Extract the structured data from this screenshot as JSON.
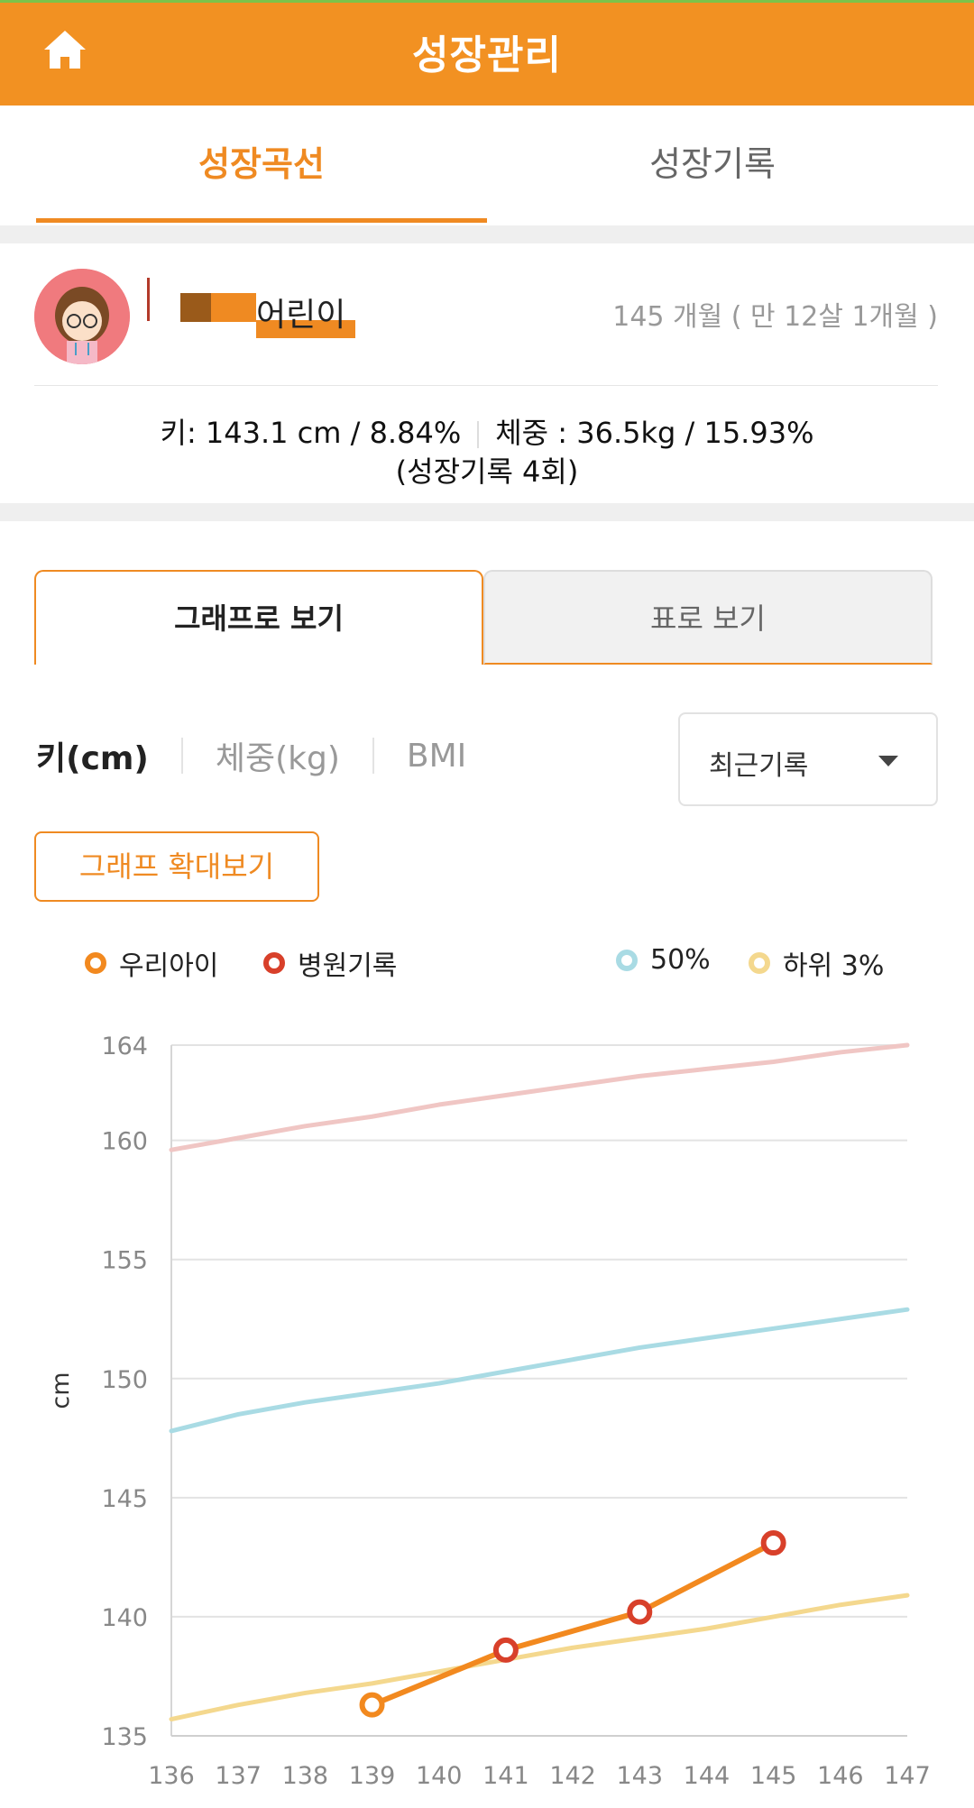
{
  "header": {
    "title": "성장관리",
    "home_icon": "home-icon"
  },
  "main_tabs": [
    {
      "label": "성장곡선",
      "active": true
    },
    {
      "label": "성장기록",
      "active": false
    }
  ],
  "profile": {
    "name": "어린이",
    "age": "145 개월 ( 만 12살 1개월 )",
    "stats_height": "키: 143.1 cm / 8.84%",
    "stats_weight": "체중 : 36.5kg / 15.93%",
    "stats_count": "(성장기록 4회)"
  },
  "view_tabs": [
    {
      "label": "그래프로 보기",
      "active": true
    },
    {
      "label": "표로 보기",
      "active": false
    }
  ],
  "metric_tabs": [
    {
      "label": "키(cm)",
      "active": true
    },
    {
      "label": "체중(kg)",
      "active": false
    },
    {
      "label": "BMI",
      "active": false
    }
  ],
  "dropdown": {
    "selected": "최근기록"
  },
  "zoom_button": "그래프 확대보기",
  "legend": [
    {
      "label": "우리아이",
      "color": "#f2891f"
    },
    {
      "label": "병원기록",
      "color": "#d8402a"
    },
    {
      "label": "50%",
      "color": "#a9dbe4"
    },
    {
      "label": "하위 3%",
      "color": "#f4d88e"
    }
  ],
  "colors": {
    "accent": "#ef8a22",
    "header": "#f29122"
  },
  "chart_data": {
    "type": "line",
    "ylabel": "cm",
    "xlabel": "",
    "xlim": [
      136,
      147
    ],
    "ylim": [
      135,
      164
    ],
    "x_ticks": [
      136,
      137,
      138,
      139,
      140,
      141,
      142,
      143,
      144,
      145,
      146,
      147
    ],
    "y_ticks": [
      135,
      140,
      145,
      150,
      155,
      160,
      164
    ],
    "grid": true,
    "series": [
      {
        "name": "우리아이",
        "color": "#f2891f",
        "x": [
          139,
          141,
          143,
          145
        ],
        "y": [
          136.3,
          138.6,
          140.2,
          143.1
        ]
      },
      {
        "name": "병원기록",
        "color": "#d8402a",
        "x": [
          141,
          143,
          145
        ],
        "y": [
          138.6,
          140.2,
          143.1
        ]
      },
      {
        "name": "50%",
        "color": "#a9dbe4",
        "x": [
          136,
          137,
          138,
          139,
          140,
          141,
          142,
          143,
          144,
          145,
          146,
          147
        ],
        "y": [
          147.8,
          148.5,
          149.0,
          149.4,
          149.8,
          150.3,
          150.8,
          151.3,
          151.7,
          152.1,
          152.5,
          152.9
        ]
      },
      {
        "name": "하위 3%",
        "color": "#f4d88e",
        "x": [
          136,
          137,
          138,
          139,
          140,
          141,
          142,
          143,
          144,
          145,
          146,
          147
        ],
        "y": [
          135.7,
          136.3,
          136.8,
          137.2,
          137.7,
          138.2,
          138.7,
          139.1,
          139.5,
          140.0,
          140.5,
          140.9
        ]
      },
      {
        "name": "",
        "color": "#f0c6c4",
        "x": [
          136,
          137,
          138,
          139,
          140,
          141,
          142,
          143,
          144,
          145,
          146,
          147
        ],
        "y": [
          159.6,
          160.1,
          160.6,
          161.0,
          161.5,
          161.9,
          162.3,
          162.7,
          163.0,
          163.3,
          163.7,
          164.0
        ]
      }
    ]
  }
}
